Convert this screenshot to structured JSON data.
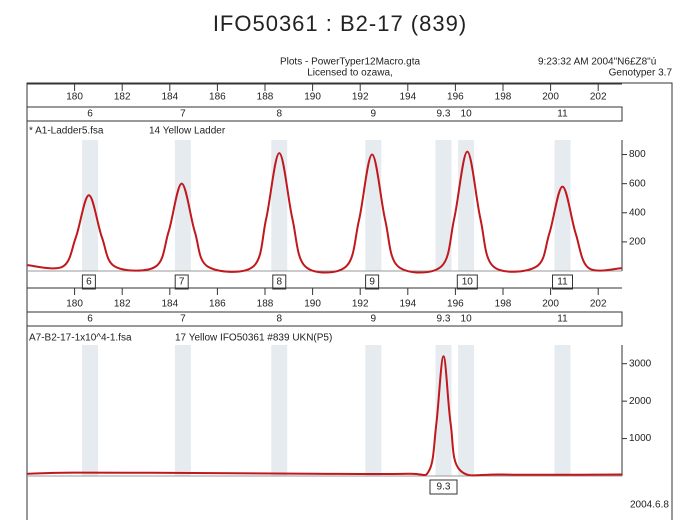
{
  "title": "IFO50361 : B2-17 (839)",
  "header": {
    "plot_file": "Plots - PowerTyper12Macro.gta",
    "license": "Licensed to ozawa,",
    "timestamp": "9:23:32  AM 2004\"N6£Z8\"ú",
    "app": "Genotyper  3.7"
  },
  "date": "2004.6.8",
  "chart_data": [
    {
      "type": "line",
      "title": "* A1-Ladder5.fsa",
      "subtitle": "14 Yellow  Ladder",
      "color": "#c0191d",
      "xlim": [
        178,
        203
      ],
      "xticks": [
        180,
        182,
        184,
        186,
        188,
        190,
        192,
        194,
        196,
        198,
        200,
        202
      ],
      "ylim": [
        0,
        900
      ],
      "yticks": [
        200,
        400,
        600,
        800
      ],
      "bin_labels": [
        "6",
        "7",
        "8",
        "9",
        "9.3",
        "10",
        "11"
      ],
      "bin_x": [
        180.65,
        184.55,
        188.6,
        192.55,
        195.5,
        196.45,
        200.5
      ],
      "peak_labels": [
        "6",
        "7",
        "8",
        "9",
        "10",
        "11"
      ],
      "peak_x": [
        180.6,
        184.5,
        188.6,
        192.5,
        196.5,
        200.5
      ],
      "x": [
        178,
        179.5,
        180.05,
        180.6,
        181.15,
        181.7,
        183.4,
        183.95,
        184.5,
        185.05,
        185.6,
        187.5,
        188.05,
        188.6,
        189.15,
        189.7,
        191.4,
        191.95,
        192.5,
        193.05,
        193.6,
        195.4,
        195.95,
        196.5,
        197.05,
        197.6,
        199.4,
        199.95,
        200.5,
        201.05,
        201.6,
        203
      ],
      "values": [
        40,
        30,
        230,
        520,
        230,
        30,
        30,
        270,
        600,
        270,
        30,
        30,
        360,
        810,
        360,
        30,
        30,
        350,
        800,
        350,
        30,
        30,
        360,
        820,
        360,
        30,
        30,
        260,
        580,
        260,
        20,
        20
      ]
    },
    {
      "type": "line",
      "title": "A7-B2-17-1x10^4-1.fsa",
      "subtitle": "17 Yellow  IFO50361 #839 UKN(P5)",
      "color": "#c0191d",
      "xlim": [
        178,
        203
      ],
      "xticks": [
        180,
        182,
        184,
        186,
        188,
        190,
        192,
        194,
        196,
        198,
        200,
        202
      ],
      "ylim": [
        0,
        3500
      ],
      "yticks": [
        1000,
        2000,
        3000
      ],
      "bin_labels": [
        "6",
        "7",
        "8",
        "9",
        "9.3",
        "10",
        "11"
      ],
      "bin_x": [
        180.65,
        184.55,
        188.6,
        192.55,
        195.5,
        196.45,
        200.5
      ],
      "peak_labels": [
        "9.3"
      ],
      "peak_x": [
        195.5
      ],
      "x": [
        178,
        180,
        185,
        190,
        194,
        194.9,
        195.2,
        195.5,
        195.8,
        196.2,
        198,
        203
      ],
      "values": [
        60,
        90,
        80,
        60,
        60,
        150,
        1400,
        3200,
        1400,
        150,
        40,
        40
      ]
    }
  ]
}
